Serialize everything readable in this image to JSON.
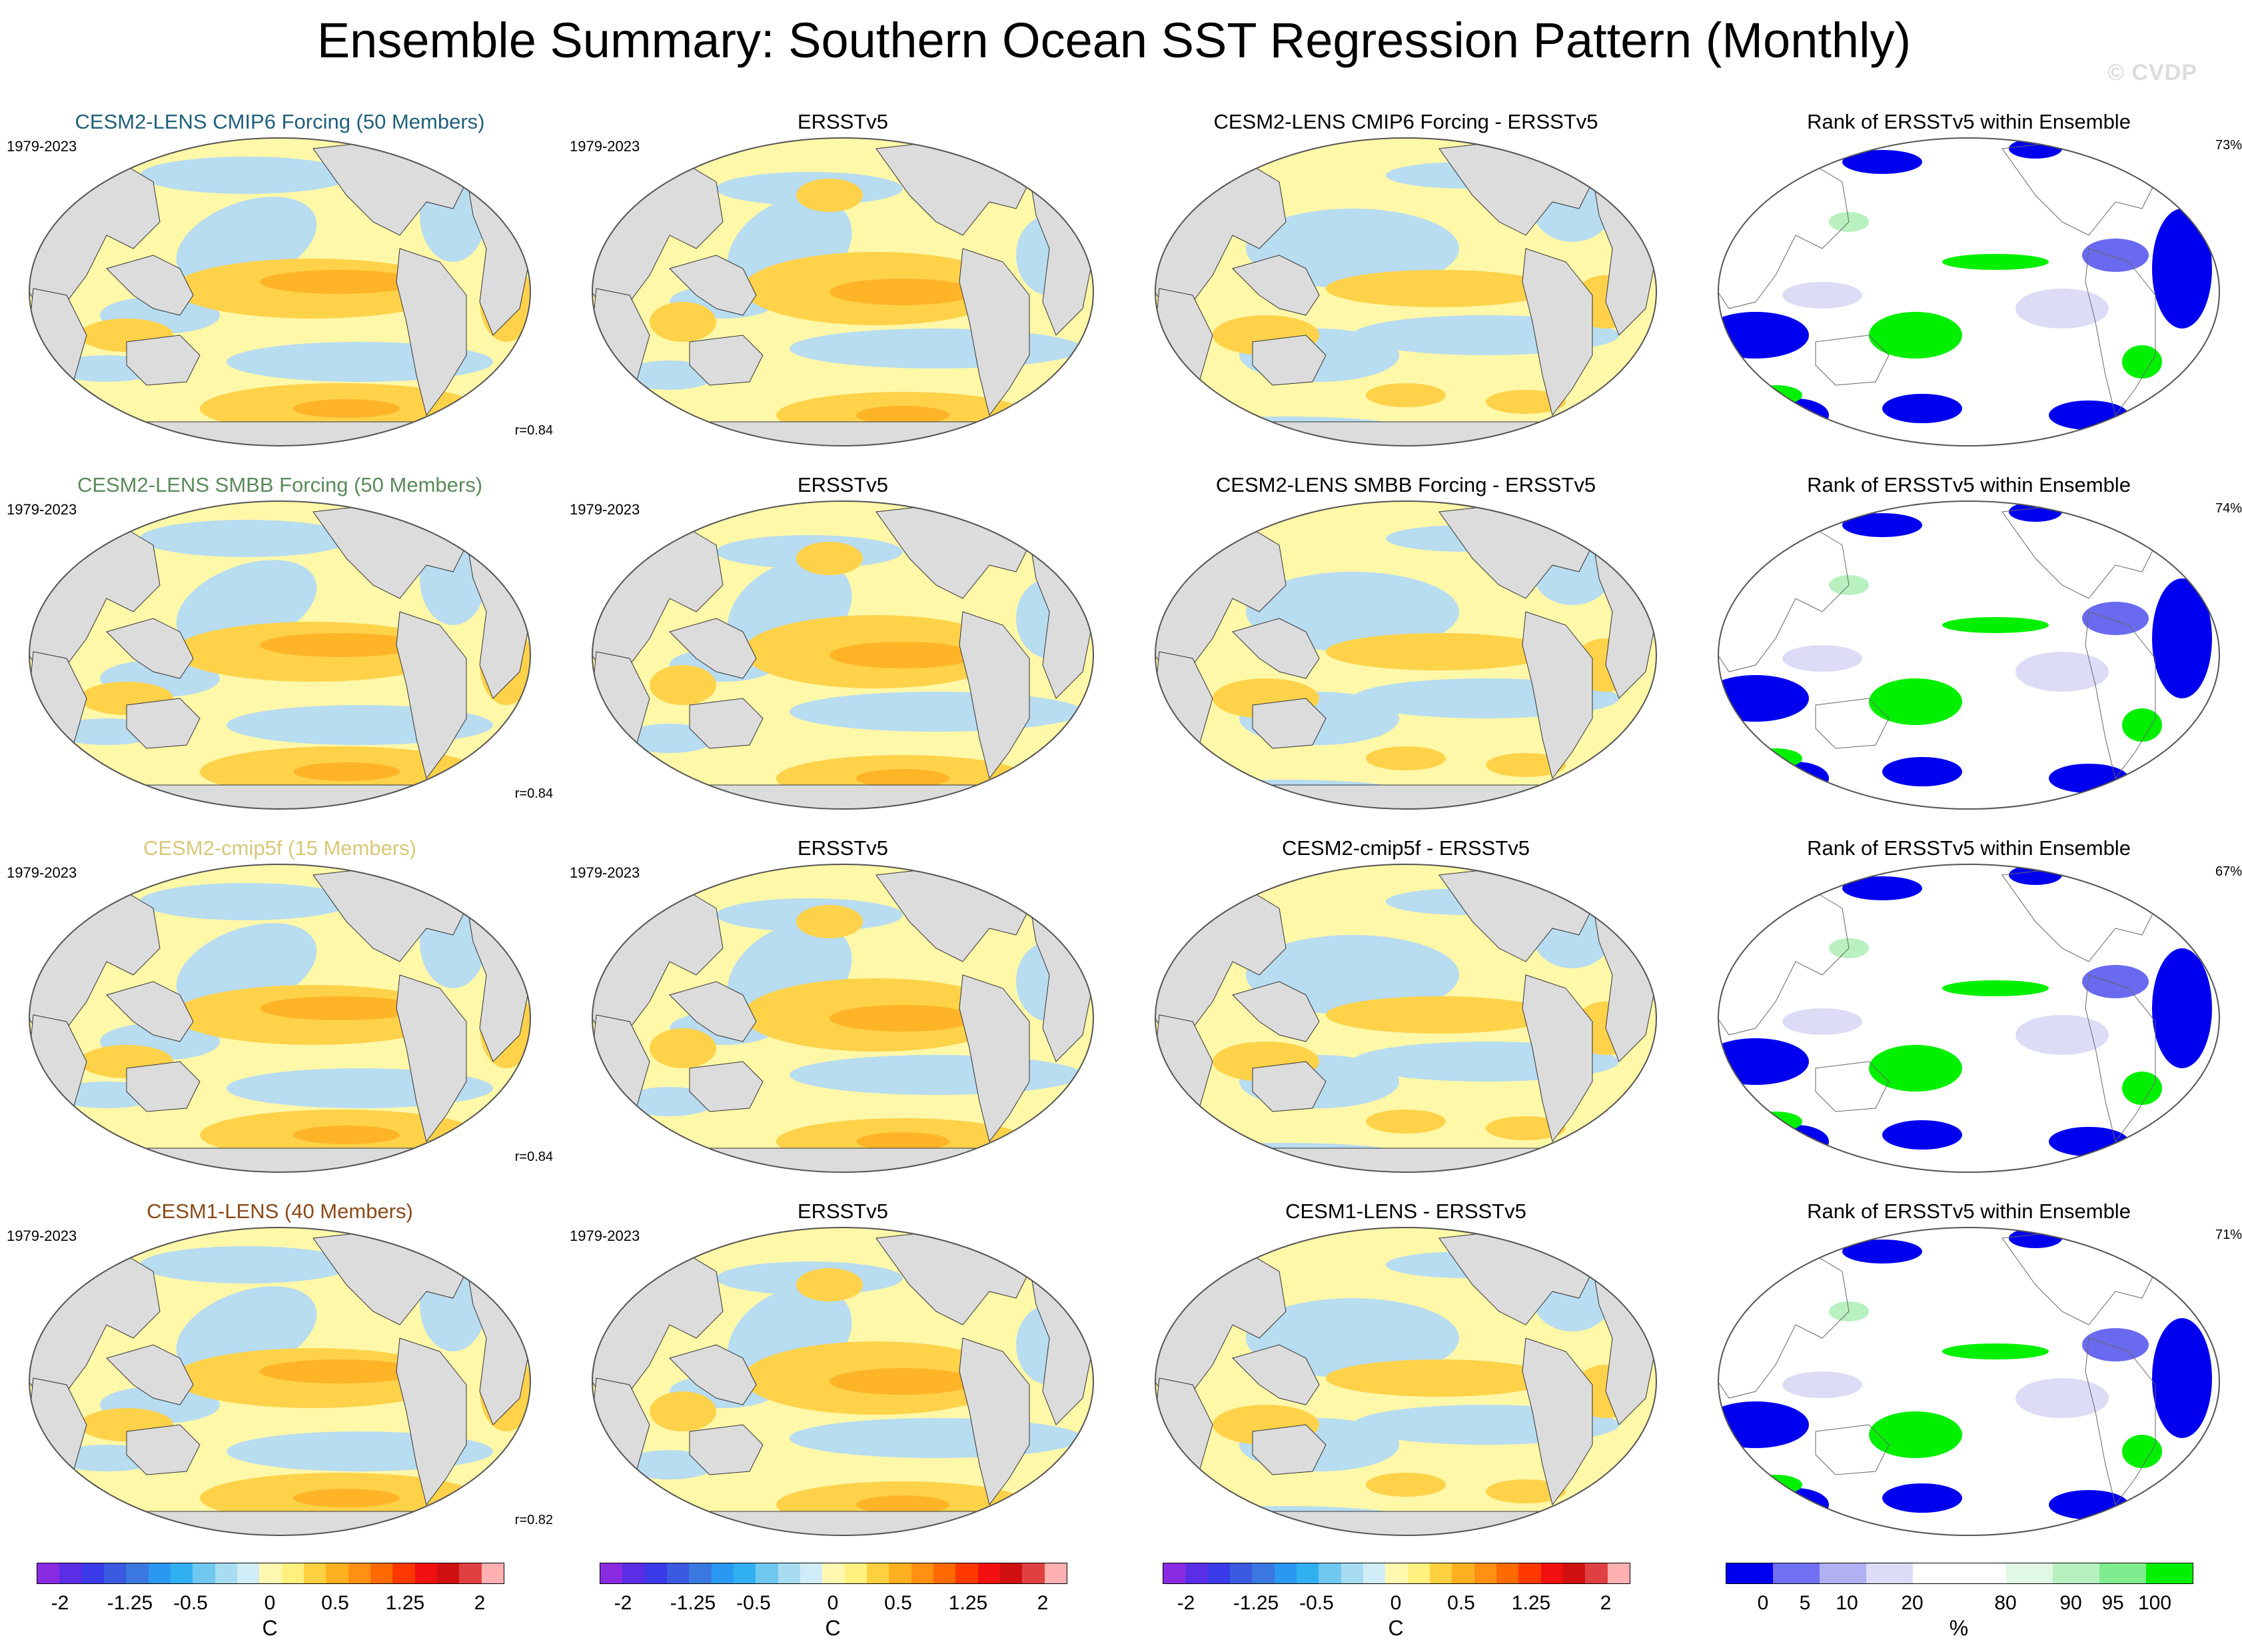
{
  "figure": {
    "title": "Ensemble Summary: Southern Ocean SST Regression Pattern (Monthly)",
    "watermark": "© CVDP"
  },
  "rows": [
    {
      "model_title": "CESM2-LENS CMIP6 Forcing (50 Members)",
      "model_color": "#1f5f7a",
      "period": "1979-2023",
      "correlation": "r=0.84",
      "obs_title": "ERSSTv5",
      "diff_title": "CESM2-LENS CMIP6 Forcing - ERSSTv5",
      "rank_title": "Rank of ERSSTv5 within Ensemble",
      "rank_pct": "73%"
    },
    {
      "model_title": "CESM2-LENS SMBB Forcing (50 Members)",
      "model_color": "#5a8a5a",
      "period": "1979-2023",
      "correlation": "r=0.84",
      "obs_title": "ERSSTv5",
      "diff_title": "CESM2-LENS SMBB Forcing - ERSSTv5",
      "rank_title": "Rank of ERSSTv5 within Ensemble",
      "rank_pct": "74%"
    },
    {
      "model_title": "CESM2-cmip5f (15 Members)",
      "model_color": "#d8c878",
      "period": "1979-2023",
      "correlation": "r=0.84",
      "obs_title": "ERSSTv5",
      "diff_title": "CESM2-cmip5f - ERSSTv5",
      "rank_title": "Rank of ERSSTv5 within Ensemble",
      "rank_pct": "67%"
    },
    {
      "model_title": "CESM1-LENS (40 Members)",
      "model_color": "#8a4a1a",
      "period": "1979-2023",
      "correlation": "r=0.82",
      "obs_title": "ERSSTv5",
      "diff_title": "CESM1-LENS - ERSSTv5",
      "rank_title": "Rank of ERSSTv5 within Ensemble",
      "rank_pct": "71%"
    }
  ],
  "colorbars": {
    "sst": {
      "ticks": [
        "-2",
        "-1.25",
        "-0.5",
        "0",
        "0.5",
        "1.25",
        "2"
      ],
      "unit": "C",
      "colors": [
        "#8a2be2",
        "#5a2ee6",
        "#3a3ae8",
        "#3a5ae0",
        "#3a78e0",
        "#2a98f0",
        "#30b0f0",
        "#70c8f0",
        "#a8dcf0",
        "#d0ecf6",
        "#fff8b0",
        "#fff080",
        "#ffd040",
        "#ffb020",
        "#ff9010",
        "#ff6a00",
        "#ff3800",
        "#f01010",
        "#d01010",
        "#e04040",
        "#ffb0b0"
      ]
    },
    "rank": {
      "ticks": [
        "0",
        "5",
        "10",
        "20",
        "80",
        "90",
        "95",
        "100"
      ],
      "unit": "%",
      "colors": [
        "#0000ee",
        "#7070f0",
        "#b0b0f2",
        "#dcdcf6",
        "#ffffff",
        "#ffffff",
        "#e0f8e4",
        "#b8f0c0",
        "#80ec90",
        "#00f000"
      ]
    }
  }
}
